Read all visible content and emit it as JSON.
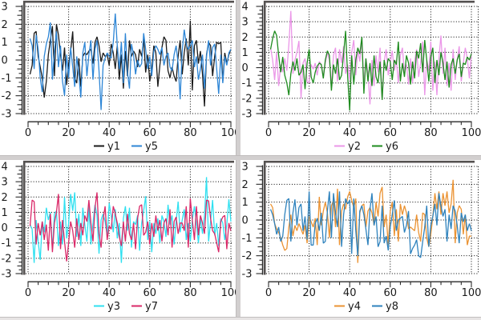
{
  "window": {
    "background": "#ffffff",
    "divider_color": "#d2cfcf",
    "plot_frame_color": "#545150",
    "grid_color": "#000000",
    "axis_color": "#2a2a2a",
    "label_color": "#1a1a1a"
  },
  "chart_data": [
    {
      "type": "line",
      "position": "top-left",
      "title": "",
      "xlabel": "",
      "ylabel": "",
      "x_range": [
        0,
        100
      ],
      "y_range": [
        -3,
        3
      ],
      "x_ticks": [
        0,
        20,
        40,
        60,
        80,
        100
      ],
      "x_minor_step": 5,
      "y_ticks": [
        -3,
        -2,
        -1,
        0,
        1,
        2,
        3
      ],
      "grid": true,
      "legend_position": "bottom",
      "x": {
        "start": 1,
        "step": 1,
        "count": 100
      },
      "series": [
        {
          "name": "y1",
          "color": "#1a1a1a",
          "values": [
            -0.8,
            -0.3,
            1.5,
            1.6,
            0.2,
            -0.4,
            -1.0,
            -2.1,
            -1.2,
            0.3,
            1.1,
            1.9,
            -0.9,
            2.0,
            1.4,
            0.3,
            -0.6,
            0.7,
            -1.4,
            -0.2,
            0.5,
            1.6,
            -1.0,
            -1.3,
            0.1,
            -1.5,
            0.2,
            0.4,
            0.3,
            0.5,
            0.6,
            -0.2,
            1.0,
            1.3,
            0.8,
            -0.1,
            0.4,
            0.2,
            0.3,
            -0.3,
            0.9,
            0.4,
            -0.5,
            0.8,
            -1.1,
            0.3,
            -1.6,
            0.5,
            -0.9,
            1.1,
            0.2,
            0.5,
            0.3,
            -0.4,
            0.6,
            0.2,
            1.2,
            -0.7,
            0.3,
            -1.2,
            -0.5,
            0.8,
            0.4,
            -1.5,
            -0.3,
            0.7,
            1.3,
            1.1,
            -0.6,
            -1.0,
            -0.4,
            -0.9,
            -1.2,
            0.2,
            1.1,
            -0.8,
            0.4,
            1.2,
            -0.3,
            2.2,
            -1.7,
            0.8,
            1.1,
            -0.2,
            0.5,
            -0.8,
            -2.6,
            0.3,
            1.0,
            0.8,
            -0.9,
            0.2,
            1.0,
            0.9,
            1.0,
            -1.2,
            0.4,
            -0.2,
            0.3,
            0.6
          ]
        },
        {
          "name": "y5",
          "color": "#2e86d6",
          "values": [
            1.2,
            0.8,
            -0.5,
            1.4,
            0.6,
            -1.0,
            -1.8,
            0.2,
            0.9,
            1.3,
            2.1,
            -1.1,
            0.5,
            1.6,
            -0.4,
            0.8,
            -1.2,
            -2.0,
            0.3,
            -1.0,
            0.7,
            -0.4,
            -1.5,
            0.2,
            -0.8,
            -2.1,
            0.4,
            1.0,
            -0.9,
            0.3,
            1.1,
            -1.1,
            0.6,
            1.1,
            -0.6,
            -2.8,
            -0.3,
            0.1,
            0.4,
            0.2,
            0.1,
            1.0,
            2.6,
            0.8,
            -0.5,
            1.0,
            -1.3,
            1.5,
            -0.7,
            -1.6,
            0.9,
            0.3,
            -0.8,
            0.0,
            -0.4,
            -0.2,
            1.5,
            0.6,
            -0.5,
            0.2,
            -0.9,
            0.5,
            0.8,
            0.6,
            0.3,
            0.7,
            -0.3,
            0.2,
            0.4,
            -0.4,
            -0.6,
            0.3,
            0.8,
            -0.2,
            -2.2,
            0.5,
            1.7,
            0.9,
            0.6,
            0.8,
            1.1,
            -0.4,
            0.2,
            -1.1,
            -0.5,
            0.3,
            -1.6,
            0.2,
            1.1,
            -0.3,
            0.7,
            0.9,
            -0.5,
            -1.9,
            0.3,
            -1.3,
            0.2,
            -0.3,
            0.4,
            0.6
          ]
        }
      ]
    },
    {
      "type": "line",
      "position": "top-right",
      "title": "",
      "xlabel": "",
      "ylabel": "",
      "x_range": [
        0,
        100
      ],
      "y_range": [
        -3,
        4
      ],
      "x_ticks": [
        0,
        20,
        40,
        60,
        80,
        100
      ],
      "x_minor_step": 5,
      "y_ticks": [
        -3,
        -2,
        -1,
        0,
        1,
        2,
        3,
        4
      ],
      "grid": true,
      "legend_position": "bottom",
      "x": {
        "start": 1,
        "step": 1,
        "count": 100
      },
      "series": [
        {
          "name": "y2",
          "color": "#eb97e8",
          "values": [
            1.3,
            0.5,
            -0.8,
            1.0,
            -1.2,
            0.2,
            -0.3,
            0.6,
            -0.2,
            1.5,
            3.7,
            -0.4,
            0.5,
            1.0,
            1.75,
            -2.0,
            0.3,
            0.6,
            -0.9,
            -1.0,
            0.2,
            -0.1,
            0.3,
            -0.5,
            0.4,
            0.2,
            -0.6,
            0.3,
            1.0,
            0.5,
            -1.2,
            0.8,
            1.3,
            -0.9,
            1.2,
            0.3,
            1.4,
            -0.4,
            0.2,
            -0.8,
            1.0,
            1.8,
            -0.5,
            1.2,
            0.4,
            1.9,
            -1.1,
            0.6,
            -0.3,
            -2.4,
            0.5,
            -1.2,
            0.8,
            -0.3,
            1.3,
            -2.1,
            0.4,
            1.2,
            -0.5,
            0.3,
            1.1,
            -0.2,
            0.5,
            -1.0,
            0.8,
            1.3,
            -0.4,
            0.2,
            -1.1,
            0.6,
            -1.0,
            0.4,
            1.2,
            -0.6,
            0.3,
            1.7,
            -1.8,
            0.5,
            -0.2,
            1.7,
            -1.5,
            0.4,
            -1.8,
            0.6,
            2.1,
            -0.4,
            1.3,
            -1.2,
            0.3,
            -1.5,
            1.2,
            -0.8,
            0.5,
            1.4,
            -0.9,
            0.3,
            1.3,
            0.6,
            -0.7,
            0.9
          ]
        },
        {
          "name": "y6",
          "color": "#1e8b1e",
          "values": [
            1.2,
            1.9,
            2.4,
            2.1,
            0.8,
            -0.3,
            0.7,
            -0.5,
            -1.0,
            -1.8,
            -0.4,
            0.4,
            -0.2,
            0.6,
            -0.5,
            -0.3,
            0.2,
            -1.4,
            0.3,
            1.2,
            -0.6,
            -1.0,
            -0.3,
            0.1,
            0.3,
            0.2,
            -0.7,
            0.5,
            1.1,
            0.8,
            -1.5,
            0.2,
            -0.4,
            0.6,
            -0.8,
            -0.5,
            0.9,
            2.4,
            -0.6,
            -2.8,
            0.8,
            -1.1,
            0.5,
            1.3,
            0.9,
            2.0,
            -1.7,
            0.6,
            -0.9,
            0.3,
            -1.2,
            0.8,
            -0.6,
            -1.0,
            0.4,
            -2.1,
            0.5,
            -0.2,
            0.6,
            0.4,
            -0.8,
            0.5,
            0.2,
            1.7,
            -0.9,
            0.3,
            -0.6,
            0.8,
            0.3,
            -1.1,
            0.4,
            -0.7,
            1.1,
            0.6,
            1.6,
            -0.3,
            1.8,
            0.5,
            -0.9,
            0.7,
            1.3,
            -1.0,
            0.5,
            -0.5,
            1.0,
            0.3,
            -0.8,
            0.4,
            -1.3,
            0.2,
            0.6,
            -0.4,
            0.5,
            0.9,
            -0.6,
            0.3,
            0.2,
            0.7,
            0.5,
            0.9
          ]
        }
      ]
    },
    {
      "type": "line",
      "position": "bottom-left",
      "title": "",
      "xlabel": "",
      "ylabel": "",
      "x_range": [
        0,
        100
      ],
      "y_range": [
        -3,
        4
      ],
      "x_ticks": [
        0,
        20,
        40,
        60,
        80,
        100
      ],
      "x_minor_step": 5,
      "y_ticks": [
        -3,
        -2,
        -1,
        0,
        1,
        2,
        3,
        4
      ],
      "grid": true,
      "legend_position": "bottom",
      "x": {
        "start": 1,
        "step": 1,
        "count": 100
      },
      "series": [
        {
          "name": "y3",
          "color": "#2fe0f0",
          "values": [
            0.2,
            -0.1,
            -2.3,
            0.5,
            -0.9,
            -2.1,
            0.4,
            -0.3,
            1.3,
            0.5,
            1.0,
            -1.4,
            0.9,
            1.1,
            -1.2,
            0.4,
            -1.1,
            2.0,
            -0.7,
            0.3,
            2.2,
            1.1,
            2.3,
            -0.6,
            0.9,
            -1.2,
            1.3,
            0.2,
            -0.9,
            1.4,
            -1.1,
            0.3,
            1.5,
            0.8,
            -1.7,
            0.5,
            0.9,
            0.4,
            -0.5,
            1.6,
            0.8,
            -0.3,
            1.2,
            -0.7,
            0.3,
            -2.3,
            0.6,
            1.4,
            -0.2,
            1.3,
            -1.3,
            0.4,
            0.2,
            0.8,
            -1.5,
            0.3,
            1.1,
            2.05,
            -0.8,
            0.4,
            -1.6,
            0.3,
            -0.4,
            0.6,
            -1.0,
            0.8,
            0.4,
            -0.6,
            1.5,
            0.2,
            0.8,
            -1.1,
            0.4,
            1.7,
            -0.3,
            0.5,
            1.2,
            -0.8,
            0.3,
            -0.9,
            0.5,
            1.4,
            0.3,
            -1.0,
            0.6,
            -0.4,
            0.8,
            3.3,
            -0.9,
            0.4,
            1.8,
            -0.5,
            0.3,
            -1.2,
            0.6,
            0.3,
            -0.8,
            0.2,
            1.85,
            0.4
          ]
        },
        {
          "name": "y7",
          "color": "#da2868",
          "values": [
            0.1,
            1.8,
            1.7,
            -1.1,
            0.3,
            -0.5,
            0.4,
            -0.8,
            0.2,
            -1.5,
            0.9,
            -1.6,
            0.3,
            1.0,
            2.2,
            -1.4,
            0.5,
            -0.9,
            -2.2,
            -1.0,
            0.4,
            -0.2,
            -1.3,
            0.6,
            -0.8,
            0.3,
            -0.5,
            0.8,
            0.4,
            1.8,
            0.3,
            -0.9,
            1.3,
            2.3,
            -0.4,
            -1.3,
            0.5,
            1.4,
            -0.8,
            0.1,
            -0.1,
            1.4,
            0.9,
            0.3,
            -0.6,
            -1.2,
            0.4,
            -0.9,
            0.9,
            -0.4,
            -0.8,
            0.3,
            -1.4,
            0.6,
            1.4,
            1.5,
            -0.5,
            -0.3,
            0.4,
            -1.1,
            0.3,
            -0.6,
            0.8,
            -0.2,
            0.5,
            -0.9,
            0.3,
            0.6,
            -0.5,
            1.2,
            -1.3,
            0.4,
            0.7,
            -0.4,
            0.3,
            0.3,
            -0.2,
            1.4,
            -1.3,
            1.9,
            0.5,
            -0.8,
            1.4,
            -0.5,
            0.8,
            0.3,
            -0.4,
            1.8,
            1.75,
            0.6,
            -0.2,
            -0.4,
            -1.0,
            -1.6,
            0.4,
            0.7,
            0.8,
            -1.4,
            0.3,
            -0.2
          ]
        }
      ]
    },
    {
      "type": "line",
      "position": "bottom-right",
      "title": "",
      "xlabel": "",
      "ylabel": "",
      "x_range": [
        0,
        100
      ],
      "y_range": [
        -3,
        3
      ],
      "x_ticks": [
        0,
        20,
        40,
        60,
        80,
        100
      ],
      "x_minor_step": 5,
      "y_ticks": [
        -3,
        -2,
        -1,
        0,
        1,
        2,
        3
      ],
      "grid": true,
      "legend_position": "bottom",
      "x": {
        "start": 1,
        "step": 1,
        "count": 100
      },
      "series": [
        {
          "name": "y4",
          "color": "#eb9333",
          "values": [
            0.9,
            0.7,
            -0.2,
            -0.5,
            -0.7,
            -1.0,
            -1.4,
            -1.7,
            -1.6,
            -0.4,
            0.3,
            -0.9,
            -0.3,
            -0.6,
            -0.2,
            -0.5,
            -0.8,
            -0.3,
            -1.3,
            0.2,
            -0.1,
            -0.4,
            0.1,
            -1.4,
            1.3,
            -0.3,
            0.5,
            1.0,
            0.4,
            -1.0,
            0.8,
            1.1,
            -0.4,
            1.75,
            -1.4,
            0.5,
            0.9,
            0.6,
            1.3,
            1.6,
            1.1,
            0.7,
            1.2,
            -2.4,
            0.4,
            0.8,
            0.9,
            -0.4,
            0.5,
            0.7,
            0.4,
            -0.3,
            1.0,
            0.2,
            1.5,
            1.85,
            -0.4,
            0.3,
            -1.4,
            0.5,
            1.0,
            -0.9,
            0.6,
            -1.2,
            0.9,
            0.3,
            0.8,
            0.4,
            -0.5,
            -0.4,
            -0.5,
            -0.6,
            0.3,
            -0.7,
            -1.2,
            0.4,
            0.3,
            -1.0,
            -1.5,
            -0.8,
            0.2,
            1.5,
            0.6,
            1.6,
            0.3,
            1.5,
            0.8,
            1.6,
            0.4,
            0.9,
            2.25,
            -1.3,
            0.4,
            0.8,
            0.6,
            -0.8,
            0.3,
            -1.4,
            -0.9,
            -0.9
          ]
        },
        {
          "name": "y8",
          "color": "#2e82bd",
          "values": [
            0.6,
            0.3,
            -0.2,
            -0.8,
            -0.4,
            -1.2,
            -0.9,
            0.3,
            1.1,
            1.2,
            -1.2,
            0.4,
            1.15,
            -0.3,
            0.7,
            0.9,
            -0.6,
            0.2,
            -1.1,
            1.6,
            -1.4,
            -1.4,
            -0.2,
            0.1,
            -0.6,
            0.4,
            -1.3,
            -1.2,
            0.5,
            1.6,
            -1.0,
            1.5,
            0.4,
            -0.4,
            1.6,
            -1.5,
            0.3,
            1.2,
            0.9,
            1.1,
            -1.9,
            1.2,
            -0.6,
            -2.0,
            0.5,
            0.8,
            0.3,
            -0.5,
            -1.4,
            0.6,
            1.5,
            -0.3,
            0.2,
            -1.5,
            -1.2,
            0.8,
            -1.3,
            -0.9,
            -1.7,
            -0.4,
            0.3,
            1.1,
            -0.6,
            0.0,
            0.1,
            0.2,
            -0.7,
            -0.3,
            0.5,
            -1.9,
            -1.6,
            -1.4,
            -1.1,
            -2.0,
            -2.1,
            -1.2,
            -0.4,
            0.8,
            -1.5,
            -0.3,
            0.2,
            0.9,
            -0.3,
            1.5,
            0.8,
            0.2,
            0.6,
            -1.2,
            0.3,
            -0.5,
            0.8,
            0.5,
            -0.3,
            -1.3,
            0.4,
            -0.1,
            0.3,
            -0.6,
            -0.2,
            -0.6
          ]
        }
      ]
    }
  ]
}
